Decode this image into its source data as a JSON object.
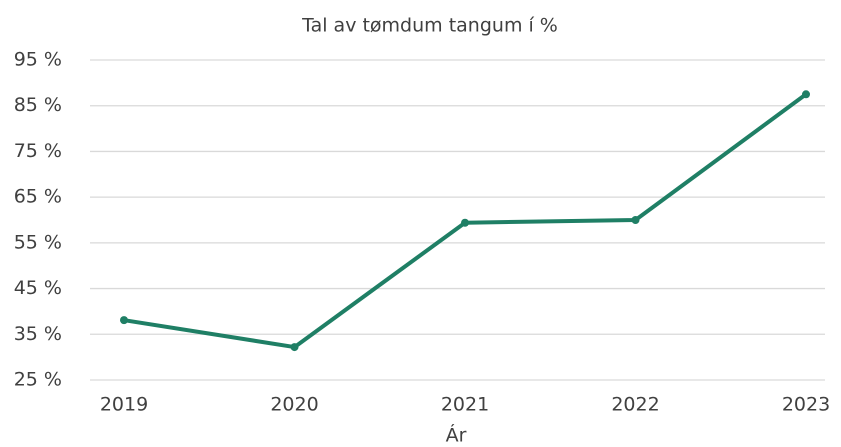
{
  "chart_data": {
    "type": "line",
    "title": "Tal av tømdum tangum í %",
    "x_label": "Ár",
    "categories": [
      "2019",
      "2020",
      "2021",
      "2022",
      "2023"
    ],
    "series": [
      {
        "color": "#1f7f65",
        "values": [
          38.1,
          32.2,
          59.4,
          60.0,
          87.5
        ]
      }
    ],
    "ylim": [
      25,
      95
    ],
    "yticks": [
      {
        "value": 25,
        "label": "25 %"
      },
      {
        "value": 35,
        "label": "35 %"
      },
      {
        "value": 45,
        "label": "45 %"
      },
      {
        "value": 55,
        "label": "55 %"
      },
      {
        "value": 65,
        "label": "65 %"
      },
      {
        "value": 75,
        "label": "75 %"
      },
      {
        "value": 85,
        "label": "85 %"
      },
      {
        "value": 95,
        "label": "95 %"
      }
    ],
    "grid": true
  }
}
